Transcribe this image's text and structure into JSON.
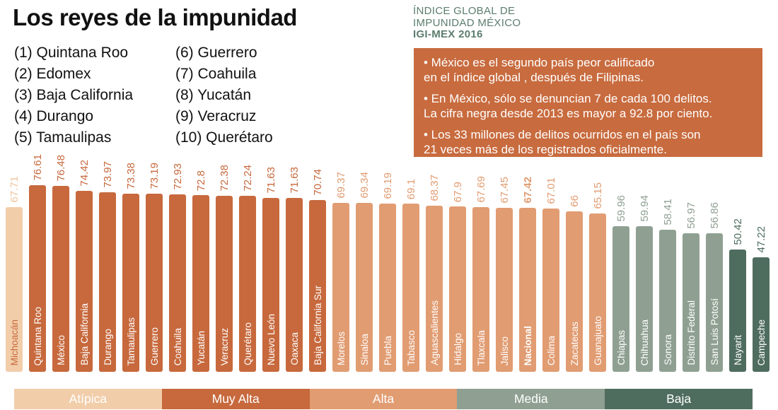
{
  "title": "Los reyes de la impunidad",
  "ranking": {
    "col1": [
      "(1) Quintana Roo",
      "(2) Edomex",
      "(3) Baja California",
      "(4) Durango",
      "(5) Tamaulipas"
    ],
    "col2": [
      "(6) Guerrero",
      "(7) Coahuila",
      "(8) Yucatán",
      "(9) Veracruz",
      "(10) Querétaro"
    ]
  },
  "igi_header": {
    "line1": "ÍNDICE GLOBAL DE",
    "line2": "IMPUNIDAD MÉXICO",
    "line3": "IGI-MEX 2016"
  },
  "infobox": {
    "bullets": [
      "• México es el segundo país peor calificado\nen el índice global , después de Filipinas.",
      "• En México, sólo se denuncian 7 de cada 100 delitos.\nLa cifra negra desde 2013 es mayor a 92.8 por ciento.",
      "• Los 33 millones de delitos ocurridos en el país son\n21 veces más de los registrados oficialmente."
    ]
  },
  "colors": {
    "atipica": "#F2CDAA",
    "muy_alta": "#C7693D",
    "alta": "#E19C72",
    "media": "#8FA092",
    "baja": "#4F6D5E",
    "infobox_bg": "#C86B3E",
    "header_green": "#5C7D6E",
    "atipica_state_text": "#C86B3E",
    "atipica_value_text": "#EFC49E"
  },
  "chart_data": {
    "type": "bar",
    "title": "Los reyes de la impunidad — IGI-MEX 2016",
    "categories": [
      "Michoacán",
      "Quintana Roo",
      "México",
      "Baja California",
      "Durango",
      "Tamaulipas",
      "Guerrero",
      "Coahuila",
      "Yucatán",
      "Veracruz",
      "Querétaro",
      "Nuevo León",
      "Oaxaca",
      "Baja California Sur",
      "Morelos",
      "Sinaloa",
      "Puebla",
      "Tabasco",
      "Aguascalientes",
      "Hidalgo",
      "Tlaxcala",
      "Jalisco",
      "Nacional",
      "Colima",
      "Zacatecas",
      "Guanajuato",
      "Chiapas",
      "Chihuahua",
      "Sonora",
      "Distrito Federal",
      "San Luis Potosí",
      "Nayarit",
      "Campeche"
    ],
    "values": [
      67.71,
      76.61,
      76.48,
      74.42,
      73.97,
      73.38,
      73.19,
      72.93,
      72.8,
      72.38,
      72.24,
      71.63,
      71.63,
      70.74,
      69.37,
      69.34,
      69.19,
      69.1,
      68.37,
      67.9,
      67.69,
      67.45,
      67.42,
      67.01,
      66,
      65.15,
      59.96,
      59.94,
      58.41,
      56.97,
      56.86,
      50.42,
      47.22
    ],
    "value_labels": [
      "67.71",
      "76.61",
      "76.48",
      "74.42",
      "73.97",
      "73.38",
      "73.19",
      "72.93",
      "72.8",
      "72.38",
      "72.24",
      "71.63",
      "71.63",
      "70.74",
      "69.37",
      "69.34",
      "69.19",
      "69.1",
      "68.37",
      "67.9",
      "67.69",
      "67.45",
      "67.42",
      "67.01",
      "66",
      "65.15",
      "59.96",
      "59.94",
      "58.41",
      "56.97",
      "56.86",
      "50.42",
      "47.22"
    ],
    "levels": [
      "atipica",
      "muy_alta",
      "muy_alta",
      "muy_alta",
      "muy_alta",
      "muy_alta",
      "muy_alta",
      "muy_alta",
      "muy_alta",
      "muy_alta",
      "muy_alta",
      "muy_alta",
      "muy_alta",
      "muy_alta",
      "alta",
      "alta",
      "alta",
      "alta",
      "alta",
      "alta",
      "alta",
      "alta",
      "alta",
      "alta",
      "alta",
      "alta",
      "media",
      "media",
      "media",
      "media",
      "media",
      "baja",
      "baja"
    ],
    "highlighted_category": "Nacional",
    "ylim": [
      0,
      80
    ],
    "grid": false,
    "legend_position": "bottom"
  },
  "legend": {
    "items": [
      {
        "label": "Atípica",
        "level": "atipica"
      },
      {
        "label": "Muy Alta",
        "level": "muy_alta"
      },
      {
        "label": "Alta",
        "level": "alta"
      },
      {
        "label": "Media",
        "level": "media"
      },
      {
        "label": "Baja",
        "level": "baja"
      }
    ]
  }
}
